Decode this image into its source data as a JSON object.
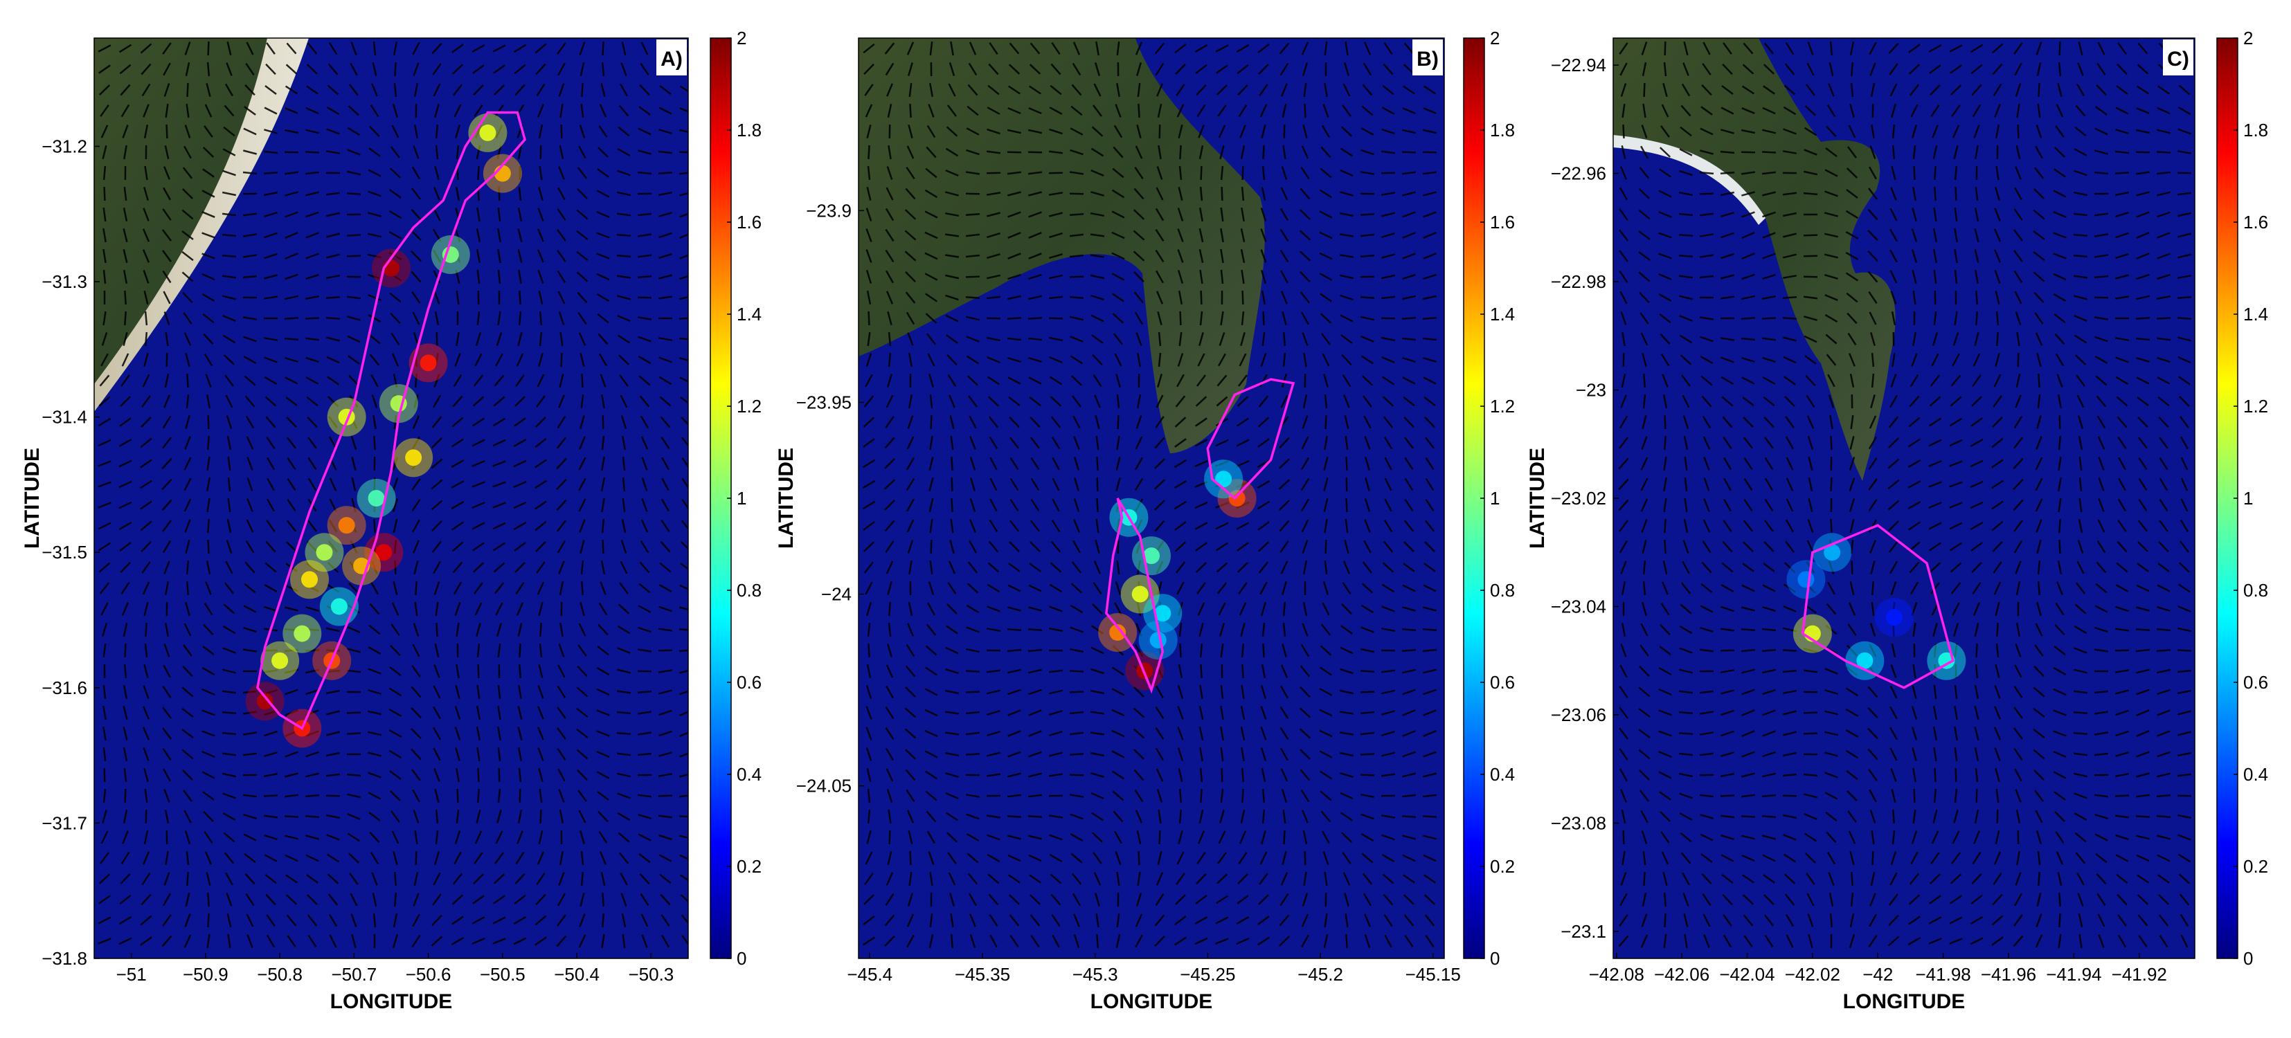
{
  "figure": {
    "colorbar_colors": [
      "#00007f",
      "#0000ff",
      "#007fff",
      "#00ffff",
      "#7fff7f",
      "#ffff00",
      "#ff7f00",
      "#ff0000",
      "#7f0000"
    ],
    "ocean_color": "#0a1490",
    "boundary_color": "#ff22ee",
    "arrow_color": "#000000",
    "panels": [
      {
        "label": "A)",
        "xlabel": "LONGITUDE",
        "ylabel": "LATITUDE",
        "xticks": [
          "−51",
          "−50.9",
          "−50.8",
          "−50.7",
          "−50.6",
          "−50.5",
          "−50.4",
          "−50.3"
        ],
        "xtick_values": [
          -51,
          -50.9,
          -50.8,
          -50.7,
          -50.6,
          -50.5,
          -50.4,
          -50.3
        ],
        "xlim": [
          -51.05,
          -50.25
        ],
        "yticks": [
          "−31.2",
          "−31.3",
          "−31.4",
          "−31.5",
          "−31.6",
          "−31.7",
          "−31.8"
        ],
        "ytick_values": [
          -31.2,
          -31.3,
          -31.4,
          -31.5,
          -31.6,
          -31.7,
          -31.8
        ],
        "ylim": [
          -31.8,
          -31.12
        ],
        "colorbar_ticks": [
          "2",
          "1.8",
          "1.6",
          "1.4",
          "1.2",
          "1",
          "0.8",
          "0.6",
          "0.4",
          "0.2",
          "0"
        ],
        "colorbar_values": [
          2,
          1.8,
          1.6,
          1.4,
          1.2,
          1,
          0.8,
          0.6,
          0.4,
          0.2,
          0
        ],
        "colorbar_range": [
          0,
          2
        ],
        "boundary": [
          [
            -50.52,
            -31.175
          ],
          [
            -50.48,
            -31.175
          ],
          [
            -50.47,
            -31.195
          ],
          [
            -50.51,
            -31.22
          ],
          [
            -50.55,
            -31.24
          ],
          [
            -50.57,
            -31.27
          ],
          [
            -50.6,
            -31.32
          ],
          [
            -50.62,
            -31.36
          ],
          [
            -50.64,
            -31.4
          ],
          [
            -50.65,
            -31.44
          ],
          [
            -50.67,
            -31.49
          ],
          [
            -50.7,
            -31.54
          ],
          [
            -50.73,
            -31.58
          ],
          [
            -50.77,
            -31.63
          ],
          [
            -50.8,
            -31.62
          ],
          [
            -50.83,
            -31.6
          ],
          [
            -50.82,
            -31.57
          ],
          [
            -50.79,
            -31.52
          ],
          [
            -50.76,
            -31.47
          ],
          [
            -50.73,
            -31.43
          ],
          [
            -50.7,
            -31.39
          ],
          [
            -50.68,
            -31.34
          ],
          [
            -50.66,
            -31.29
          ],
          [
            -50.62,
            -31.26
          ],
          [
            -50.58,
            -31.24
          ],
          [
            -50.55,
            -31.2
          ]
        ],
        "hotspots": [
          [
            -50.52,
            -31.19,
            1.2
          ],
          [
            -50.5,
            -31.22,
            1.4
          ],
          [
            -50.57,
            -31.28,
            1.0
          ],
          [
            -50.65,
            -31.29,
            1.9
          ],
          [
            -50.6,
            -31.36,
            1.7
          ],
          [
            -50.64,
            -31.39,
            1.1
          ],
          [
            -50.62,
            -31.43,
            1.3
          ],
          [
            -50.71,
            -31.4,
            1.2
          ],
          [
            -50.67,
            -31.46,
            0.9
          ],
          [
            -50.71,
            -31.48,
            1.5
          ],
          [
            -50.66,
            -31.5,
            1.8
          ],
          [
            -50.74,
            -31.5,
            1.1
          ],
          [
            -50.76,
            -31.52,
            1.3
          ],
          [
            -50.72,
            -31.54,
            0.8
          ],
          [
            -50.77,
            -31.56,
            1.1
          ],
          [
            -50.73,
            -31.58,
            1.6
          ],
          [
            -50.8,
            -31.58,
            1.2
          ],
          [
            -50.82,
            -31.61,
            1.9
          ],
          [
            -50.77,
            -31.63,
            1.7
          ],
          [
            -50.69,
            -31.51,
            1.4
          ]
        ],
        "land": "coast-a"
      },
      {
        "label": "B)",
        "xlabel": "LONGITUDE",
        "ylabel": "LATITUDE",
        "xticks": [
          "−45.4",
          "−45.35",
          "−45.3",
          "−45.25",
          "−45.2",
          "−45.15"
        ],
        "xtick_values": [
          -45.4,
          -45.35,
          -45.3,
          -45.25,
          -45.2,
          -45.15
        ],
        "xlim": [
          -45.405,
          -45.145
        ],
        "yticks": [
          "−23.9",
          "−23.95",
          "−24",
          "−24.05"
        ],
        "ytick_values": [
          -23.9,
          -23.95,
          -24,
          -24.05
        ],
        "ylim": [
          -24.095,
          -23.855
        ],
        "colorbar_ticks": [
          "2",
          "1.8",
          "1.6",
          "1.4",
          "1.2",
          "1",
          "0.8",
          "0.6",
          "0.4",
          "0.2",
          "0"
        ],
        "colorbar_values": [
          2,
          1.8,
          1.6,
          1.4,
          1.2,
          1,
          0.8,
          0.6,
          0.4,
          0.2,
          0
        ],
        "colorbar_range": [
          0,
          2
        ],
        "boundary": [
          [
            -45.29,
            -23.975
          ],
          [
            -45.28,
            -23.985
          ],
          [
            -45.275,
            -24.0
          ],
          [
            -45.27,
            -24.015
          ],
          [
            -45.275,
            -24.025
          ],
          [
            -45.282,
            -24.015
          ],
          [
            -45.288,
            -24.01
          ],
          [
            -45.295,
            -24.005
          ],
          [
            -45.292,
            -23.99
          ],
          [
            -45.288,
            -23.98
          ]
        ],
        "boundary2": [
          [
            -45.25,
            -23.962
          ],
          [
            -45.238,
            -23.948
          ],
          [
            -45.222,
            -23.944
          ],
          [
            -45.212,
            -23.945
          ],
          [
            -45.222,
            -23.965
          ],
          [
            -45.238,
            -23.975
          ],
          [
            -45.248,
            -23.97
          ]
        ],
        "hotspots": [
          [
            -45.285,
            -23.98,
            0.8
          ],
          [
            -45.275,
            -23.99,
            0.9
          ],
          [
            -45.28,
            -24.0,
            1.2
          ],
          [
            -45.27,
            -24.005,
            0.7
          ],
          [
            -45.29,
            -24.01,
            1.5
          ],
          [
            -45.278,
            -24.02,
            1.9
          ],
          [
            -45.272,
            -24.012,
            0.6
          ],
          [
            -45.237,
            -23.975,
            1.6
          ],
          [
            -45.243,
            -23.97,
            0.7
          ]
        ],
        "land": "island-b"
      },
      {
        "label": "C)",
        "xlabel": "LONGITUDE",
        "ylabel": "LATITUDE",
        "xticks": [
          "−42.08",
          "−42.06",
          "−42.04",
          "−42.02",
          "−42",
          "−41.98",
          "−41.96",
          "−41.94",
          "−41.92"
        ],
        "xtick_values": [
          -42.08,
          -42.06,
          -42.04,
          -42.02,
          -42,
          -41.98,
          -41.96,
          -41.94,
          -41.92
        ],
        "xlim": [
          -42.081,
          -41.903
        ],
        "yticks": [
          "−22.94",
          "−22.96",
          "−22.98",
          "−23",
          "−23.02",
          "−23.04",
          "−23.06",
          "−23.08",
          "−23.1"
        ],
        "ytick_values": [
          -22.94,
          -22.96,
          -22.98,
          -23,
          -23.02,
          -23.04,
          -23.06,
          -23.08,
          -23.1
        ],
        "ylim": [
          -23.105,
          -22.935
        ],
        "colorbar_ticks": [
          "2",
          "1.8",
          "1.6",
          "1.4",
          "1.2",
          "1",
          "0.8",
          "0.6",
          "0.4",
          "0.2",
          "0"
        ],
        "colorbar_values": [
          2,
          1.8,
          1.6,
          1.4,
          1.2,
          1,
          0.8,
          0.6,
          0.4,
          0.2,
          0
        ],
        "colorbar_range": [
          0,
          2
        ],
        "boundary": [
          [
            -42.0,
            -23.025
          ],
          [
            -41.985,
            -23.032
          ],
          [
            -41.977,
            -23.05
          ],
          [
            -41.992,
            -23.055
          ],
          [
            -42.01,
            -23.05
          ],
          [
            -42.023,
            -23.045
          ],
          [
            -42.02,
            -23.03
          ]
        ],
        "hotspots": [
          [
            -42.014,
            -23.03,
            0.6
          ],
          [
            -42.022,
            -23.035,
            0.5
          ],
          [
            -42.02,
            -23.045,
            1.2
          ],
          [
            -42.004,
            -23.05,
            0.7
          ],
          [
            -41.979,
            -23.05,
            0.8
          ],
          [
            -41.995,
            -23.042,
            0.3
          ]
        ],
        "land": "cape-c"
      }
    ]
  }
}
